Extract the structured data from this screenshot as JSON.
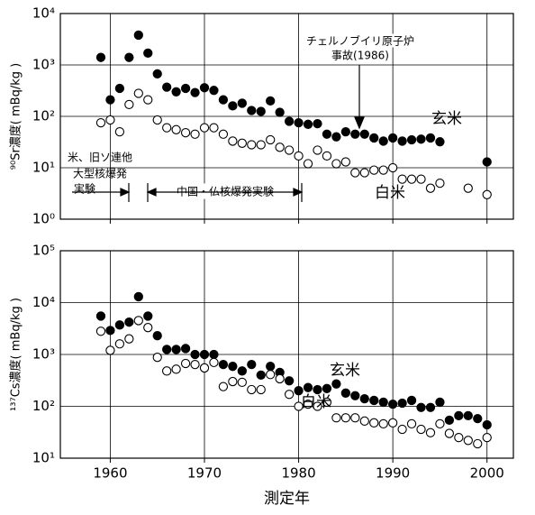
{
  "chart_data": [
    {
      "type": "scatter",
      "ylabel": "⁹⁰Sr濃度( mBq/kg )",
      "log_y": true,
      "grid": true,
      "show_xtick_labels": false,
      "xlim": [
        1954.7,
        2002.8
      ],
      "xticks": [
        1960,
        1970,
        1980,
        1990,
        2000
      ],
      "ylim": [
        1,
        10000
      ],
      "yticks": [
        {
          "value": 1,
          "label": "10⁰"
        },
        {
          "value": 10,
          "label": "10¹"
        },
        {
          "value": 100,
          "label": "10²"
        },
        {
          "value": 1000,
          "label": "10³"
        },
        {
          "value": 10000,
          "label": "10⁴"
        }
      ],
      "x": [
        1959,
        1960,
        1961,
        1962,
        1963,
        1964,
        1965,
        1966,
        1967,
        1968,
        1969,
        1970,
        1971,
        1972,
        1973,
        1974,
        1975,
        1976,
        1977,
        1978,
        1979,
        1980,
        1981,
        1982,
        1983,
        1984,
        1985,
        1986,
        1987,
        1988,
        1989,
        1990,
        1991,
        1992,
        1993,
        1994,
        1995,
        1996,
        1997,
        1998,
        1999,
        2000
      ],
      "series": [
        {
          "name": "玄米",
          "color": "#000000",
          "values": [
            1400,
            210,
            350,
            1400,
            3800,
            1700,
            670,
            370,
            300,
            350,
            290,
            360,
            320,
            210,
            160,
            180,
            130,
            125,
            200,
            120,
            80,
            75,
            70,
            72,
            45,
            40,
            50,
            45,
            45,
            38,
            33,
            38,
            33,
            35,
            36,
            38,
            32,
            null,
            null,
            null,
            null,
            13
          ]
        },
        {
          "name": "白米",
          "color": "#ffffff",
          "values": [
            75,
            85,
            50,
            170,
            280,
            210,
            85,
            60,
            55,
            48,
            45,
            60,
            60,
            45,
            33,
            30,
            28,
            28,
            35,
            25,
            22,
            17,
            12,
            22,
            17,
            12,
            13,
            8,
            8,
            9,
            9,
            10,
            6,
            6,
            6,
            4,
            5,
            null,
            null,
            4,
            null,
            3
          ]
        }
      ],
      "annotations": [
        "チェルノブイリ原子炉",
        "事故(1986)",
        "米、旧ソ連他",
        "大型核爆発",
        "実験",
        "中国・仏核爆発実験"
      ]
    },
    {
      "type": "scatter",
      "ylabel": "¹³⁷Cs濃度( mBq/kg )",
      "xlabel": "測定年",
      "log_y": true,
      "grid": true,
      "show_xtick_labels": true,
      "xlim": [
        1954.7,
        2002.8
      ],
      "xticks": [
        1960,
        1970,
        1980,
        1990,
        2000
      ],
      "ylim": [
        10,
        100000
      ],
      "yticks": [
        {
          "value": 10,
          "label": "10¹"
        },
        {
          "value": 100,
          "label": "10²"
        },
        {
          "value": 1000,
          "label": "10³"
        },
        {
          "value": 10000,
          "label": "10⁴"
        },
        {
          "value": 100000,
          "label": "10⁵"
        }
      ],
      "x": [
        1959,
        1960,
        1961,
        1962,
        1963,
        1964,
        1965,
        1966,
        1967,
        1968,
        1969,
        1970,
        1971,
        1972,
        1973,
        1974,
        1975,
        1976,
        1977,
        1978,
        1979,
        1980,
        1981,
        1982,
        1983,
        1984,
        1985,
        1986,
        1987,
        1988,
        1989,
        1990,
        1991,
        1992,
        1993,
        1994,
        1995,
        1996,
        1997,
        1998,
        1999,
        2000
      ],
      "series": [
        {
          "name": "玄米",
          "color": "#000000",
          "values": [
            5500,
            2900,
            3700,
            4200,
            13000,
            5500,
            2300,
            1250,
            1250,
            1300,
            1000,
            1000,
            1000,
            640,
            590,
            480,
            640,
            400,
            590,
            450,
            310,
            200,
            230,
            210,
            220,
            270,
            180,
            160,
            140,
            130,
            120,
            110,
            115,
            130,
            95,
            95,
            120,
            54,
            66,
            66,
            58,
            44
          ]
        },
        {
          "name": "白米",
          "color": "#ffffff",
          "values": [
            2800,
            1200,
            1600,
            2000,
            4500,
            3300,
            880,
            480,
            520,
            670,
            640,
            550,
            700,
            240,
            300,
            290,
            210,
            210,
            410,
            340,
            170,
            100,
            110,
            100,
            120,
            60,
            60,
            60,
            52,
            48,
            46,
            48,
            36,
            46,
            36,
            31,
            46,
            30,
            25,
            22,
            19,
            25
          ]
        }
      ]
    }
  ]
}
